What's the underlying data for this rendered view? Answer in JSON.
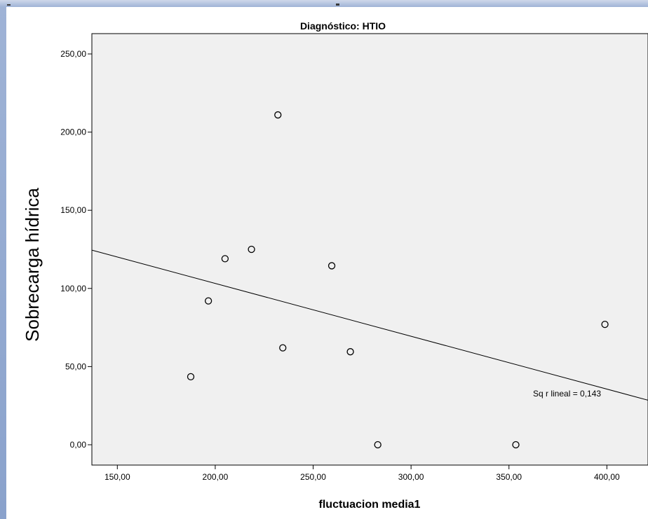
{
  "chart_data": {
    "type": "scatter",
    "title": "Diagnóstico: HTIO",
    "xlabel": "fluctuacion media1",
    "ylabel": "Sobrecarga hídrica",
    "xlim": [
      137,
      421
    ],
    "ylim": [
      -13,
      263
    ],
    "x_ticks": [
      150,
      200,
      250,
      300,
      350,
      400
    ],
    "x_tick_labels": [
      "150,00",
      "200,00",
      "250,00",
      "300,00",
      "350,00",
      "400,00"
    ],
    "y_ticks": [
      0,
      50,
      100,
      150,
      200,
      250
    ],
    "y_tick_labels": [
      "0,00",
      "50,00",
      "100,00",
      "150,00",
      "200,00",
      "250,00"
    ],
    "points": [
      {
        "x": 187.5,
        "y": 43.5
      },
      {
        "x": 196.5,
        "y": 92
      },
      {
        "x": 205,
        "y": 119
      },
      {
        "x": 218.5,
        "y": 125
      },
      {
        "x": 232,
        "y": 211
      },
      {
        "x": 234.5,
        "y": 62
      },
      {
        "x": 259.5,
        "y": 114.5
      },
      {
        "x": 269,
        "y": 59.5
      },
      {
        "x": 283,
        "y": 0
      },
      {
        "x": 353.5,
        "y": 0
      },
      {
        "x": 399,
        "y": 77
      }
    ],
    "fit_line": {
      "x": [
        137,
        421
      ],
      "y": [
        124.5,
        28.5
      ]
    },
    "annotation": "Sq r lineal = 0,143",
    "grid": false,
    "colors": {
      "plot_background": "#f0f0f0",
      "marker_stroke": "#000000",
      "line": "#000000"
    }
  }
}
